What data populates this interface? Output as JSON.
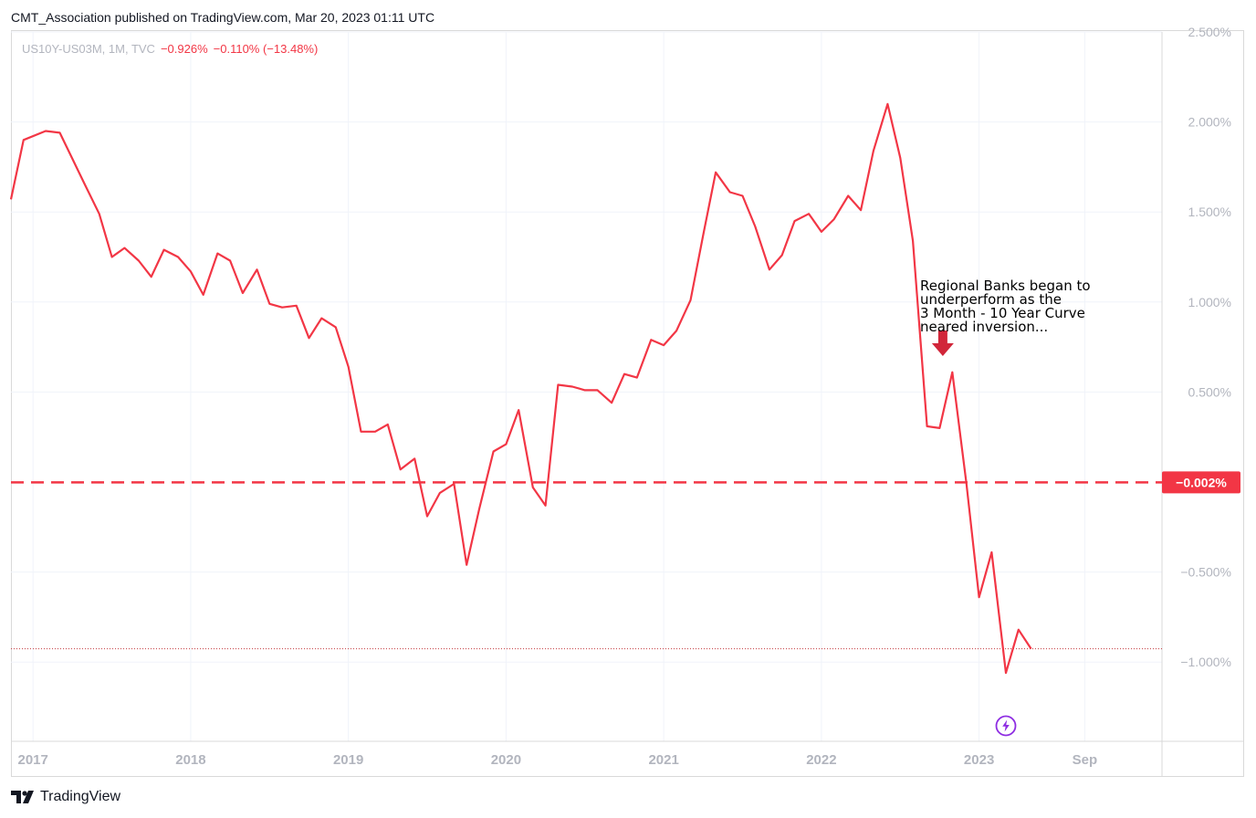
{
  "header": {
    "publish_line": "CMT_Association published on TradingView.com, Mar 20, 2023 01:11 UTC"
  },
  "legend": {
    "symbol": "US10Y-US03M, 1M, TVC",
    "last": "−0.926%",
    "change": "−0.110% (−13.48%)"
  },
  "annotation": {
    "lines": [
      "Regional Banks began to",
      "underperform as the",
      "3 Month - 10 Year Curve",
      "neared inversion..."
    ]
  },
  "footer": {
    "brand": "TradingView"
  },
  "icons": {
    "logo": "tradingview-logo-icon",
    "flash": "lightning-flash-icon",
    "arrow": "arrow-down-icon"
  },
  "colors": {
    "series": "#f23645",
    "marker": "#8e2de2",
    "grid": "#f0f3fa",
    "axis_text": "#b2b5be"
  },
  "chart_data": {
    "type": "line",
    "series": [
      {
        "values": [
          [
            2016.86,
            1.57
          ],
          [
            2016.94,
            1.9
          ],
          [
            2017.08,
            1.95
          ],
          [
            2017.17,
            1.94
          ],
          [
            2017.33,
            1.65
          ],
          [
            2017.42,
            1.49
          ],
          [
            2017.5,
            1.25
          ],
          [
            2017.58,
            1.3
          ],
          [
            2017.67,
            1.23
          ],
          [
            2017.75,
            1.14
          ],
          [
            2017.83,
            1.29
          ],
          [
            2017.92,
            1.25
          ],
          [
            2018.0,
            1.17
          ],
          [
            2018.08,
            1.04
          ],
          [
            2018.17,
            1.27
          ],
          [
            2018.25,
            1.23
          ],
          [
            2018.33,
            1.05
          ],
          [
            2018.42,
            1.18
          ],
          [
            2018.5,
            0.99
          ],
          [
            2018.58,
            0.97
          ],
          [
            2018.67,
            0.98
          ],
          [
            2018.75,
            0.8
          ],
          [
            2018.83,
            0.91
          ],
          [
            2018.92,
            0.86
          ],
          [
            2019.0,
            0.64
          ],
          [
            2019.08,
            0.28
          ],
          [
            2019.17,
            0.28
          ],
          [
            2019.25,
            0.32
          ],
          [
            2019.33,
            0.07
          ],
          [
            2019.42,
            0.13
          ],
          [
            2019.5,
            -0.19
          ],
          [
            2019.58,
            -0.06
          ],
          [
            2019.67,
            -0.01
          ],
          [
            2019.75,
            -0.46
          ],
          [
            2019.83,
            -0.15
          ],
          [
            2019.92,
            0.17
          ],
          [
            2020.0,
            0.21
          ],
          [
            2020.08,
            0.4
          ],
          [
            2020.17,
            -0.03
          ],
          [
            2020.25,
            -0.13
          ],
          [
            2020.33,
            0.54
          ],
          [
            2020.42,
            0.53
          ],
          [
            2020.5,
            0.51
          ],
          [
            2020.58,
            0.51
          ],
          [
            2020.67,
            0.44
          ],
          [
            2020.75,
            0.6
          ],
          [
            2020.83,
            0.58
          ],
          [
            2020.92,
            0.79
          ],
          [
            2021.0,
            0.76
          ],
          [
            2021.08,
            0.84
          ],
          [
            2021.17,
            1.01
          ],
          [
            2021.25,
            1.37
          ],
          [
            2021.33,
            1.72
          ],
          [
            2021.42,
            1.61
          ],
          [
            2021.5,
            1.59
          ],
          [
            2021.58,
            1.42
          ],
          [
            2021.67,
            1.18
          ],
          [
            2021.75,
            1.26
          ],
          [
            2021.83,
            1.45
          ],
          [
            2021.92,
            1.49
          ],
          [
            2022.0,
            1.39
          ],
          [
            2022.08,
            1.46
          ],
          [
            2022.17,
            1.59
          ],
          [
            2022.25,
            1.51
          ],
          [
            2022.33,
            1.84
          ],
          [
            2022.42,
            2.1
          ],
          [
            2022.5,
            1.8
          ],
          [
            2022.58,
            1.34
          ],
          [
            2022.67,
            0.31
          ],
          [
            2022.75,
            0.3
          ],
          [
            2022.83,
            0.61
          ],
          [
            2022.92,
            -0.01
          ],
          [
            2023.0,
            -0.64
          ],
          [
            2023.08,
            -0.39
          ],
          [
            2023.17,
            -1.06
          ],
          [
            2023.25,
            -0.82
          ],
          [
            2023.33,
            -0.926
          ]
        ]
      }
    ],
    "reference_line": {
      "value": -0.002,
      "label": "−0.002%",
      "style": "dashed",
      "color": "#f23645"
    },
    "last_value_line": {
      "value": -0.926,
      "style": "dotted"
    },
    "x_ticks": [
      {
        "value": 2017.0,
        "label": "2017"
      },
      {
        "value": 2018.0,
        "label": "2018"
      },
      {
        "value": 2019.0,
        "label": "2019"
      },
      {
        "value": 2020.0,
        "label": "2020"
      },
      {
        "value": 2021.0,
        "label": "2021"
      },
      {
        "value": 2022.0,
        "label": "2022"
      },
      {
        "value": 2023.0,
        "label": "2023"
      },
      {
        "value": 2023.67,
        "label": "Sep"
      }
    ],
    "y_ticks": [
      {
        "value": 2.5,
        "label": "2.500%"
      },
      {
        "value": 2.0,
        "label": "2.000%"
      },
      {
        "value": 1.5,
        "label": "1.500%"
      },
      {
        "value": 1.0,
        "label": "1.000%"
      },
      {
        "value": 0.5,
        "label": "0.500%"
      },
      {
        "value": -0.5,
        "label": "−0.500%"
      },
      {
        "value": -1.0,
        "label": "−1.000%"
      }
    ],
    "xlim": [
      2016.86,
      2024.16
    ],
    "ylim": [
      -1.44,
      2.5
    ],
    "grid": true,
    "arrow_marker": {
      "x": 2022.77,
      "y": 0.7
    },
    "flash_marker": {
      "x": 2023.17
    }
  }
}
